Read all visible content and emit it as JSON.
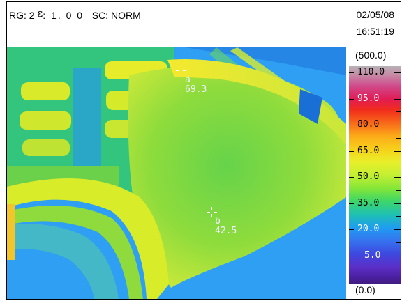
{
  "header": {
    "range_label": "RG: 2",
    "emissivity_symbol": "ε",
    "emissivity_value": ": 1. 0 0",
    "scale_mode": "SC: NORM",
    "date": "02/05/08",
    "time": "16:51:19"
  },
  "markers": [
    {
      "id": "a",
      "value": "69.3"
    },
    {
      "id": "b",
      "value": "42.5"
    }
  ],
  "scale": {
    "max_label": "(500.0)",
    "min_label": "(0.0)",
    "ticks": [
      "110.0",
      "95.0",
      "80.0",
      "65.0",
      "50.0",
      "35.0",
      "20.0",
      "5.0"
    ]
  },
  "colors": {
    "background_blue": "#2c9cf0",
    "cool_green": "#3cd66a",
    "warm_yellow": "#d8ec2a",
    "hot_yellow": "#f2ea30",
    "dark_blue": "#1a6fd6"
  }
}
